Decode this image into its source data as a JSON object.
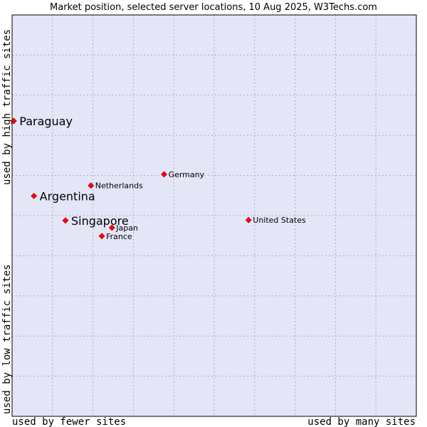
{
  "chart_data": {
    "type": "scatter",
    "title": "Market position, selected server locations, 10 Aug 2025, W3Techs.com",
    "xlabel_left": "used by fewer sites",
    "xlabel_right": "used by many sites",
    "ylabel_bottom": "used by low traffic sites",
    "ylabel_top": "used by high traffic sites",
    "xlim": [
      0,
      100
    ],
    "ylim": [
      0,
      100
    ],
    "grid": true,
    "colors": {
      "plot_background": "#e4e6f8",
      "grid": "#a9abbf",
      "border": "#000000",
      "marker": "#ff0000"
    },
    "points": [
      {
        "label": "Paraguay",
        "x": 0.4,
        "y": 73.6,
        "emphasis": true
      },
      {
        "label": "Argentina",
        "x": 5.4,
        "y": 54.9,
        "emphasis": true
      },
      {
        "label": "Singapore",
        "x": 13.2,
        "y": 48.8,
        "emphasis": true
      },
      {
        "label": "Netherlands",
        "x": 19.5,
        "y": 57.5,
        "emphasis": false
      },
      {
        "label": "Germany",
        "x": 37.6,
        "y": 60.3,
        "emphasis": false
      },
      {
        "label": "Japan",
        "x": 24.7,
        "y": 47.0,
        "emphasis": false
      },
      {
        "label": "France",
        "x": 22.2,
        "y": 44.9,
        "emphasis": false
      },
      {
        "label": "United States",
        "x": 58.5,
        "y": 48.9,
        "emphasis": false
      }
    ]
  }
}
